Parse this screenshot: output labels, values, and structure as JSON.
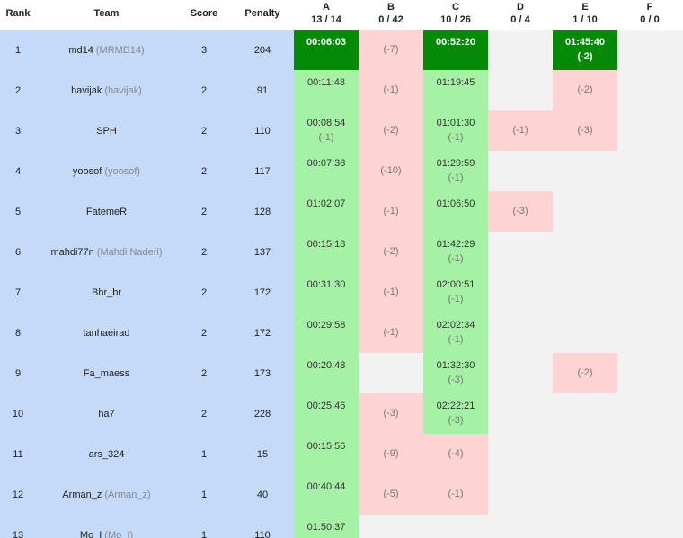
{
  "header": {
    "rank": "Rank",
    "team": "Team",
    "score": "Score",
    "penalty": "Penalty",
    "problems": [
      {
        "letter": "A",
        "stat": "13 / 14"
      },
      {
        "letter": "B",
        "stat": "0 / 42"
      },
      {
        "letter": "C",
        "stat": "10 / 26"
      },
      {
        "letter": "D",
        "stat": "0 / 4"
      },
      {
        "letter": "E",
        "stat": "1 / 10"
      },
      {
        "letter": "F",
        "stat": "0 / 0"
      }
    ]
  },
  "colors": {
    "info_bg": "#c5daf8",
    "solved": "#a5f2a6",
    "first_solve": "#048a06",
    "failed": "#fdd4d3",
    "grid_bg": "#f2f2f2"
  },
  "rows": [
    {
      "rank": "1",
      "team": "md14",
      "handle": "(MRMD14)",
      "score": "3",
      "penalty": "204",
      "cells": [
        {
          "status": "first",
          "time": "00:06:03",
          "attempts": ""
        },
        {
          "status": "failed",
          "time": "",
          "attempts": "(-7)"
        },
        {
          "status": "first",
          "time": "00:52:20",
          "attempts": ""
        },
        {
          "status": "empty",
          "time": "",
          "attempts": ""
        },
        {
          "status": "first",
          "time": "01:45:40",
          "attempts": "(-2)"
        },
        {
          "status": "empty",
          "time": "",
          "attempts": ""
        }
      ]
    },
    {
      "rank": "2",
      "team": "havijak",
      "handle": "(havijak)",
      "score": "2",
      "penalty": "91",
      "cells": [
        {
          "status": "solved",
          "time": "00:11:48",
          "attempts": ""
        },
        {
          "status": "failed",
          "time": "",
          "attempts": "(-1)"
        },
        {
          "status": "solved",
          "time": "01:19:45",
          "attempts": ""
        },
        {
          "status": "empty",
          "time": "",
          "attempts": ""
        },
        {
          "status": "failed",
          "time": "",
          "attempts": "(-2)"
        },
        {
          "status": "empty",
          "time": "",
          "attempts": ""
        }
      ]
    },
    {
      "rank": "3",
      "team": "SPH",
      "handle": "",
      "score": "2",
      "penalty": "110",
      "cells": [
        {
          "status": "solved",
          "time": "00:08:54",
          "attempts": "(-1)"
        },
        {
          "status": "failed",
          "time": "",
          "attempts": "(-2)"
        },
        {
          "status": "solved",
          "time": "01:01:30",
          "attempts": "(-1)"
        },
        {
          "status": "failed",
          "time": "",
          "attempts": "(-1)"
        },
        {
          "status": "failed",
          "time": "",
          "attempts": "(-3)"
        },
        {
          "status": "empty",
          "time": "",
          "attempts": ""
        }
      ]
    },
    {
      "rank": "4",
      "team": "yoosof",
      "handle": "(yoosof)",
      "score": "2",
      "penalty": "117",
      "cells": [
        {
          "status": "solved",
          "time": "00:07:38",
          "attempts": ""
        },
        {
          "status": "failed",
          "time": "",
          "attempts": "(-10)"
        },
        {
          "status": "solved",
          "time": "01:29:59",
          "attempts": "(-1)"
        },
        {
          "status": "empty",
          "time": "",
          "attempts": ""
        },
        {
          "status": "empty",
          "time": "",
          "attempts": ""
        },
        {
          "status": "empty",
          "time": "",
          "attempts": ""
        }
      ]
    },
    {
      "rank": "5",
      "team": "FatemeR",
      "handle": "",
      "score": "2",
      "penalty": "128",
      "cells": [
        {
          "status": "solved",
          "time": "01:02:07",
          "attempts": ""
        },
        {
          "status": "failed",
          "time": "",
          "attempts": "(-1)"
        },
        {
          "status": "solved",
          "time": "01:06:50",
          "attempts": ""
        },
        {
          "status": "failed",
          "time": "",
          "attempts": "(-3)"
        },
        {
          "status": "empty",
          "time": "",
          "attempts": ""
        },
        {
          "status": "empty",
          "time": "",
          "attempts": ""
        }
      ]
    },
    {
      "rank": "6",
      "team": "mahdi77n",
      "handle": "(Mahdi Naderi)",
      "score": "2",
      "penalty": "137",
      "cells": [
        {
          "status": "solved",
          "time": "00:15:18",
          "attempts": ""
        },
        {
          "status": "failed",
          "time": "",
          "attempts": "(-2)"
        },
        {
          "status": "solved",
          "time": "01:42:29",
          "attempts": "(-1)"
        },
        {
          "status": "empty",
          "time": "",
          "attempts": ""
        },
        {
          "status": "empty",
          "time": "",
          "attempts": ""
        },
        {
          "status": "empty",
          "time": "",
          "attempts": ""
        }
      ]
    },
    {
      "rank": "7",
      "team": "Bhr_br",
      "handle": "",
      "score": "2",
      "penalty": "172",
      "cells": [
        {
          "status": "solved",
          "time": "00:31:30",
          "attempts": ""
        },
        {
          "status": "failed",
          "time": "",
          "attempts": "(-1)"
        },
        {
          "status": "solved",
          "time": "02:00:51",
          "attempts": "(-1)"
        },
        {
          "status": "empty",
          "time": "",
          "attempts": ""
        },
        {
          "status": "empty",
          "time": "",
          "attempts": ""
        },
        {
          "status": "empty",
          "time": "",
          "attempts": ""
        }
      ]
    },
    {
      "rank": "8",
      "team": "tanhaeirad",
      "handle": "",
      "score": "2",
      "penalty": "172",
      "cells": [
        {
          "status": "solved",
          "time": "00:29:58",
          "attempts": ""
        },
        {
          "status": "failed",
          "time": "",
          "attempts": "(-1)"
        },
        {
          "status": "solved",
          "time": "02:02:34",
          "attempts": "(-1)"
        },
        {
          "status": "empty",
          "time": "",
          "attempts": ""
        },
        {
          "status": "empty",
          "time": "",
          "attempts": ""
        },
        {
          "status": "empty",
          "time": "",
          "attempts": ""
        }
      ]
    },
    {
      "rank": "9",
      "team": "Fa_maess",
      "handle": "",
      "score": "2",
      "penalty": "173",
      "cells": [
        {
          "status": "solved",
          "time": "00:20:48",
          "attempts": ""
        },
        {
          "status": "empty",
          "time": "",
          "attempts": ""
        },
        {
          "status": "solved",
          "time": "01:32:30",
          "attempts": "(-3)"
        },
        {
          "status": "empty",
          "time": "",
          "attempts": ""
        },
        {
          "status": "failed",
          "time": "",
          "attempts": "(-2)"
        },
        {
          "status": "empty",
          "time": "",
          "attempts": ""
        }
      ]
    },
    {
      "rank": "10",
      "team": "ha7",
      "handle": "",
      "score": "2",
      "penalty": "228",
      "cells": [
        {
          "status": "solved",
          "time": "00:25:46",
          "attempts": ""
        },
        {
          "status": "failed",
          "time": "",
          "attempts": "(-3)"
        },
        {
          "status": "solved",
          "time": "02:22:21",
          "attempts": "(-3)"
        },
        {
          "status": "empty",
          "time": "",
          "attempts": ""
        },
        {
          "status": "empty",
          "time": "",
          "attempts": ""
        },
        {
          "status": "empty",
          "time": "",
          "attempts": ""
        }
      ]
    },
    {
      "rank": "11",
      "team": "ars_324",
      "handle": "",
      "score": "1",
      "penalty": "15",
      "cells": [
        {
          "status": "solved",
          "time": "00:15:56",
          "attempts": ""
        },
        {
          "status": "failed",
          "time": "",
          "attempts": "(-9)"
        },
        {
          "status": "failed",
          "time": "",
          "attempts": "(-4)"
        },
        {
          "status": "empty",
          "time": "",
          "attempts": ""
        },
        {
          "status": "empty",
          "time": "",
          "attempts": ""
        },
        {
          "status": "empty",
          "time": "",
          "attempts": ""
        }
      ]
    },
    {
      "rank": "12",
      "team": "Arman_z",
      "handle": "(Arman_z)",
      "score": "1",
      "penalty": "40",
      "cells": [
        {
          "status": "solved",
          "time": "00:40:44",
          "attempts": ""
        },
        {
          "status": "failed",
          "time": "",
          "attempts": "(-5)"
        },
        {
          "status": "failed",
          "time": "",
          "attempts": "(-1)"
        },
        {
          "status": "empty",
          "time": "",
          "attempts": ""
        },
        {
          "status": "empty",
          "time": "",
          "attempts": ""
        },
        {
          "status": "empty",
          "time": "",
          "attempts": ""
        }
      ]
    },
    {
      "rank": "13",
      "team": "Mo_I",
      "handle": "(Mo_I)",
      "score": "1",
      "penalty": "110",
      "cells": [
        {
          "status": "solved",
          "time": "01:50:37",
          "attempts": ""
        },
        {
          "status": "empty",
          "time": "",
          "attempts": ""
        },
        {
          "status": "empty",
          "time": "",
          "attempts": ""
        },
        {
          "status": "empty",
          "time": "",
          "attempts": ""
        },
        {
          "status": "empty",
          "time": "",
          "attempts": ""
        },
        {
          "status": "empty",
          "time": "",
          "attempts": ""
        }
      ]
    }
  ]
}
